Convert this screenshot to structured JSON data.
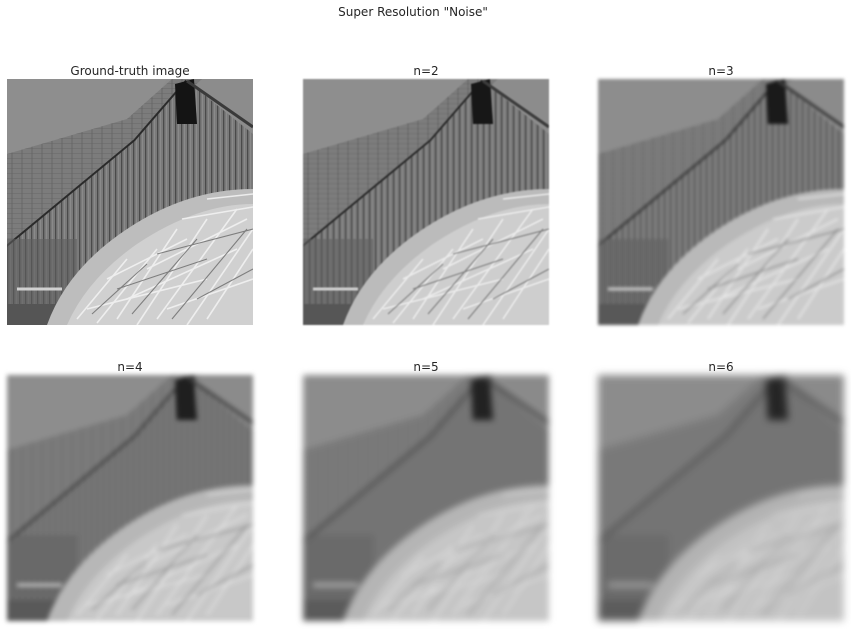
{
  "figure": {
    "title": "Super Resolution \"Noise\"",
    "panels": [
      {
        "title": "Ground-truth image",
        "blur": 0
      },
      {
        "title": "n=2",
        "blur": 0.8
      },
      {
        "title": "n=3",
        "blur": 1.6
      },
      {
        "title": "n=4",
        "blur": 2.4
      },
      {
        "title": "n=5",
        "blur": 3.2
      },
      {
        "title": "n=6",
        "blur": 4.0
      }
    ]
  }
}
